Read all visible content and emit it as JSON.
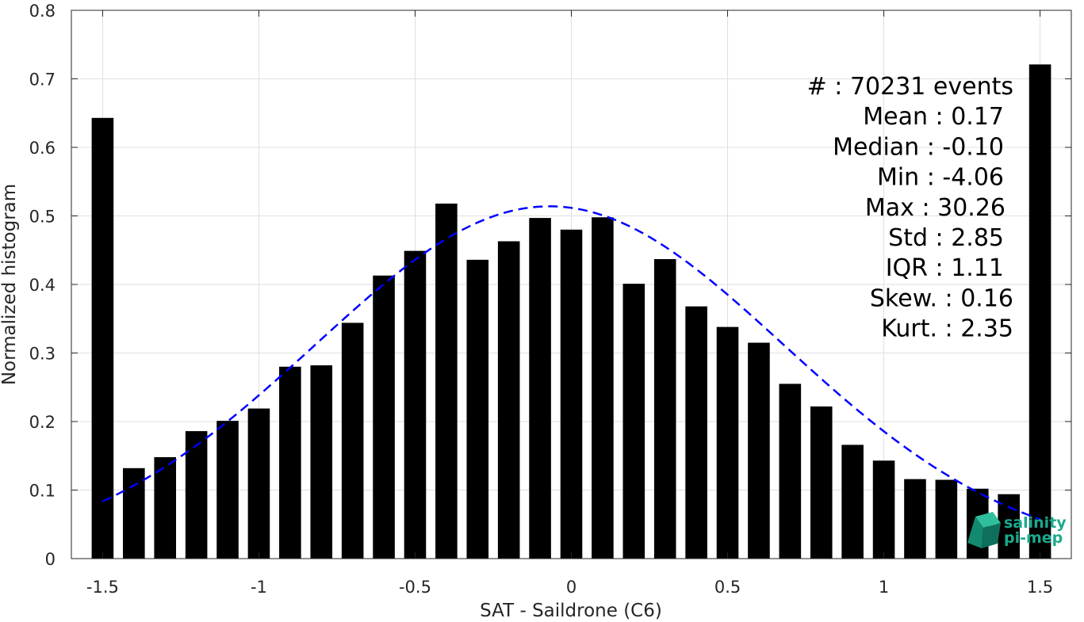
{
  "chart_data": {
    "type": "bar",
    "title": "",
    "xlabel": "SAT - Saildrone (C6)",
    "ylabel": "Normalized histogram",
    "xlim": [
      -1.6,
      1.6
    ],
    "ylim": [
      0,
      0.8
    ],
    "grid": true,
    "x_ticks": [
      -1.5,
      -1,
      -0.5,
      0,
      0.5,
      1,
      1.5
    ],
    "x_tick_labels": [
      "-1.5",
      "-1",
      "-0.5",
      "0",
      "0.5",
      "1",
      "1.5"
    ],
    "y_ticks": [
      0,
      0.1,
      0.2,
      0.3,
      0.4,
      0.5,
      0.6,
      0.7,
      0.8
    ],
    "y_tick_labels": [
      "0",
      "0.1",
      "0.2",
      "0.3",
      "0.4",
      "0.5",
      "0.6",
      "0.7",
      "0.8"
    ],
    "bar_width": 0.07,
    "series": [
      {
        "x": [
          -1.5,
          -1.4,
          -1.3,
          -1.2,
          -1.1,
          -1.0,
          -0.9,
          -0.8,
          -0.7,
          -0.6,
          -0.5,
          -0.4,
          -0.3,
          -0.2,
          -0.1,
          0.0,
          0.1,
          0.2,
          0.3,
          0.4,
          0.5,
          0.6,
          0.7,
          0.8,
          0.9,
          1.0,
          1.1,
          1.2,
          1.3,
          1.4,
          1.5
        ],
        "values": [
          0.643,
          0.132,
          0.148,
          0.186,
          0.201,
          0.219,
          0.28,
          0.282,
          0.344,
          0.413,
          0.449,
          0.518,
          0.436,
          0.463,
          0.497,
          0.48,
          0.498,
          0.401,
          0.437,
          0.368,
          0.338,
          0.315,
          0.255,
          0.222,
          0.166,
          0.143,
          0.116,
          0.115,
          0.102,
          0.094,
          0.721
        ],
        "color": "#000000"
      }
    ],
    "fit_curve": {
      "style": "dashed",
      "color": "#0000ff",
      "mean": -0.07,
      "std": 0.75,
      "peak": 0.514,
      "x_range": [
        -1.5,
        1.5
      ]
    },
    "annotation": [
      "#  : 70231 events",
      "Mean : 0.17",
      "Median : -0.10",
      "Min : -4.06",
      "Max : 30.26",
      "Std : 2.85",
      "IQR : 1.11",
      "Skew. : 0.16",
      "Kurt. : 2.35"
    ]
  },
  "logo": {
    "line1": "salinity",
    "line2": "pi-mep",
    "color": "#1aaa8c"
  }
}
